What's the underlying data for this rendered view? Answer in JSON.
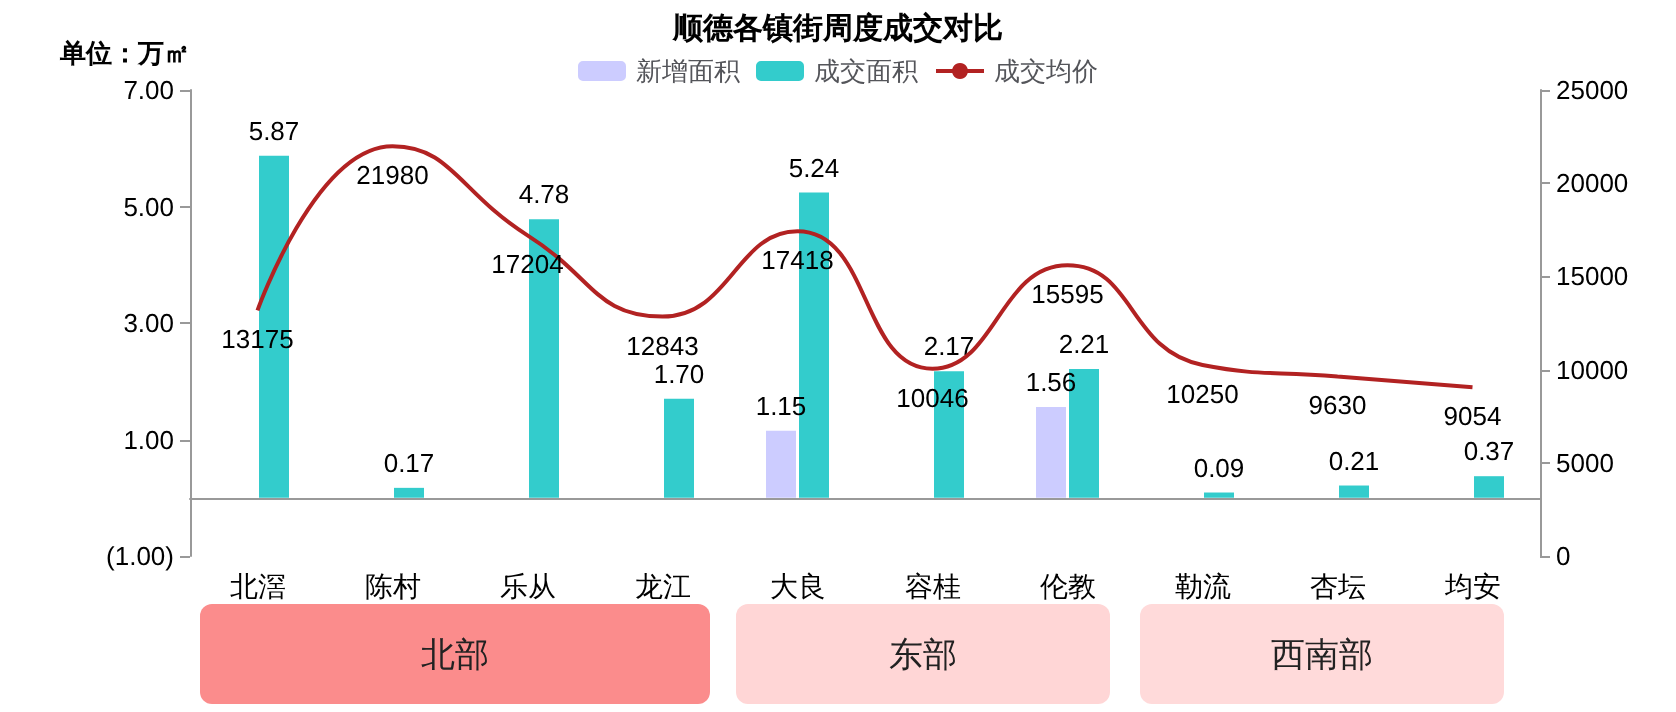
{
  "chart_data": {
    "type": "bar",
    "title": "顺德各镇街周度成交对比",
    "ylabel": "单位：万㎡",
    "categories": [
      "北滘",
      "陈村",
      "乐从",
      "龙江",
      "大良",
      "容桂",
      "伦教",
      "勒流",
      "杏坛",
      "均安"
    ],
    "series": [
      {
        "name": "新增面积",
        "color": "#ccccff",
        "values": [
          null,
          null,
          null,
          null,
          1.15,
          null,
          1.56,
          null,
          null,
          null
        ],
        "value_labels": [
          null,
          null,
          null,
          null,
          "1.15",
          null,
          "1.56",
          null,
          null,
          null
        ]
      },
      {
        "name": "成交面积",
        "color": "#33cccc",
        "values": [
          5.87,
          0.17,
          4.78,
          1.7,
          5.24,
          2.17,
          2.21,
          0.09,
          0.21,
          0.37
        ],
        "value_labels": [
          "5.87",
          "0.17",
          "4.78",
          "1.70",
          "5.24",
          "2.17",
          "2.21",
          "0.09",
          "0.21",
          "0.37"
        ]
      },
      {
        "name": "成交均价",
        "type": "line",
        "axis": "y2",
        "color": "#b22222",
        "marker": "none",
        "values": [
          13175,
          21980,
          17204,
          12843,
          17418,
          10046,
          15595,
          10250,
          9630,
          9054
        ],
        "value_labels": [
          "13175",
          "21980",
          "17204",
          "12843",
          "17418",
          "10046",
          "15595",
          "10250",
          "9630",
          "9054"
        ]
      }
    ],
    "ylim": [
      -1,
      7
    ],
    "yticks": [
      {
        "value": -1,
        "label": "(1.00)"
      },
      {
        "value": 1,
        "label": "1.00"
      },
      {
        "value": 3,
        "label": "3.00"
      },
      {
        "value": 5,
        "label": "5.00"
      },
      {
        "value": 7,
        "label": "7.00"
      }
    ],
    "y2lim": [
      0,
      25000
    ],
    "y2ticks": [
      0,
      5000,
      10000,
      15000,
      20000,
      25000
    ],
    "legend": "top",
    "grid": false,
    "annotations": [
      "北部",
      "东部",
      "西南部"
    ]
  }
}
